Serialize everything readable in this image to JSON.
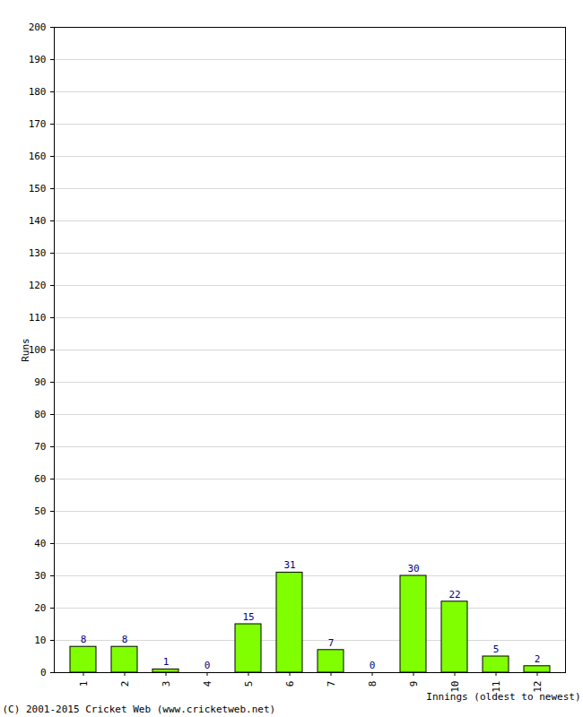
{
  "chart_data": {
    "type": "bar",
    "categories": [
      "1",
      "2",
      "3",
      "4",
      "5",
      "6",
      "7",
      "8",
      "9",
      "10",
      "11",
      "12"
    ],
    "values": [
      8,
      8,
      1,
      0,
      15,
      31,
      7,
      0,
      30,
      22,
      5,
      2
    ],
    "color": "#80ff00",
    "x_label": "Innings (oldest to newest)",
    "y_label": "Runs",
    "caption": "(C) 2001-2015 Cricket Web (www.cricketweb.net)",
    "ylim": [
      0,
      200
    ],
    "yticks": [
      0,
      10,
      20,
      30,
      40,
      50,
      60,
      70,
      80,
      90,
      100,
      110,
      120,
      130,
      140,
      150,
      160,
      170,
      180,
      190,
      200
    ],
    "grid": true,
    "data_labels": true
  }
}
